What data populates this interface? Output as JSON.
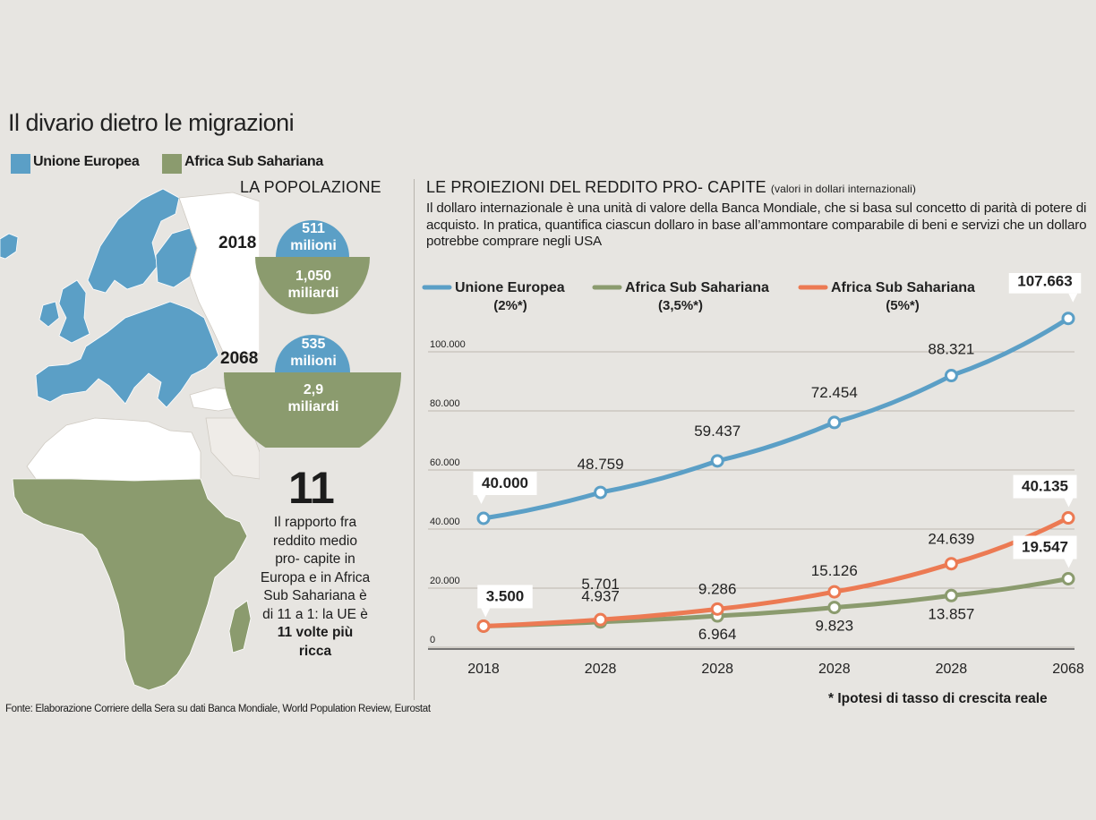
{
  "title": "Il divario dietro le migrazioni",
  "legend": [
    {
      "label": "Unione Europea",
      "color": "#5b9fc6"
    },
    {
      "label": "Africa Sub Sahariana",
      "color": "#8b9b6e"
    }
  ],
  "population": {
    "title": "LA POPOLAZIONE",
    "rows": [
      {
        "year": "2018",
        "eu_line1": "511",
        "eu_line2": "milioni",
        "africa_line1": "1,050",
        "africa_line2": "miliardi"
      },
      {
        "year": "2068",
        "eu_line1": "535",
        "eu_line2": "milioni",
        "africa_line1": "2,9",
        "africa_line2": "miliardi"
      }
    ]
  },
  "ratio": {
    "number": "11",
    "text": "Il rapporto fra reddito medio pro- capite in Europa e in Africa Sub Sahariana è di 11 a 1: la UE è",
    "bold": "11 volte più ricca"
  },
  "projections": {
    "title": "LE PROIEZIONI DEL REDDITO PRO- CAPITE",
    "title_note": "(valori in dollari internazionali)",
    "description": "Il dollaro internazionale è una unità di valore della Banca Mondiale, che si basa sul concetto di parità di potere di acquisto. In pratica, quantifica ciascun dollaro in base all’ammontare comparabile di beni e servizi che un dollaro potrebbe comprare negli USA"
  },
  "footnote": "* Ipotesi di tasso di crescita reale",
  "source": "Fonte: Elaborazione Corriere della Sera su dati Banca Mondiale, World Population Review, Eurostat",
  "chart_data": {
    "type": "line",
    "categories": [
      "2018",
      "2028",
      "2028",
      "2028",
      "2028",
      "2068"
    ],
    "yticks": [
      "0",
      "20.000",
      "40.000",
      "60.000",
      "80.000",
      "100.000"
    ],
    "ylim": [
      0,
      110000
    ],
    "grid": true,
    "legend_position": "top",
    "series": [
      {
        "name": "Unione Europea",
        "rate": "(2%*)",
        "color": "#5b9fc6",
        "values": [
          40000,
          48759,
          59437,
          72454,
          88321,
          107663
        ],
        "labels": [
          "40.000",
          "48.759",
          "59.437",
          "72.454",
          "88.321",
          "107.663"
        ]
      },
      {
        "name": "Africa Sub Sahariana",
        "rate": "(3,5%*)",
        "color": "#8b9b6e",
        "values": [
          3500,
          4937,
          6964,
          9823,
          13857,
          19547
        ],
        "labels": [
          "3.500",
          "4.937",
          "6.964",
          "9.823",
          "13.857",
          "19.547"
        ]
      },
      {
        "name": "Africa Sub Sahariana",
        "rate": "(5%*)",
        "color": "#ec7a53",
        "values": [
          3500,
          5701,
          9286,
          15126,
          24639,
          40135
        ],
        "labels": [
          "3.500",
          "5.701",
          "9.286",
          "15.126",
          "24.639",
          "40.135"
        ]
      }
    ]
  }
}
